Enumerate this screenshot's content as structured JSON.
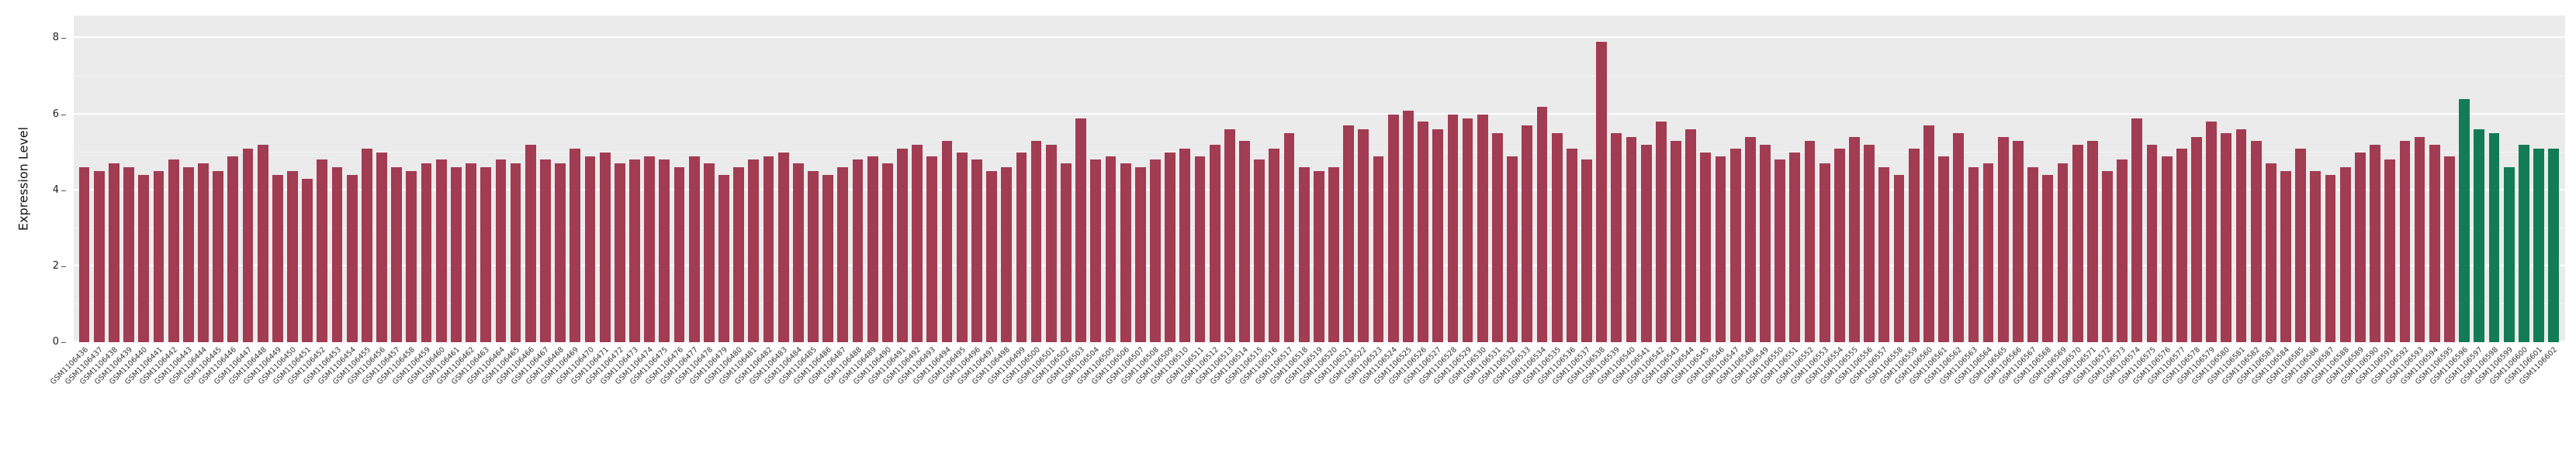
{
  "chart_data": {
    "type": "bar",
    "title": "",
    "xlabel": "",
    "ylabel": "Expression Level",
    "ylim": [
      0,
      8.6
    ],
    "yticks": [
      0,
      2,
      4,
      6,
      8
    ],
    "yticks_minor": [
      1,
      3,
      5,
      7
    ],
    "grid": true,
    "legend_position": "none",
    "plot_background": "#EBEBEB",
    "figure_background": "#FFFFFF",
    "gridline_color": "#FFFFFF",
    "colors": {
      "default": "#A23C52",
      "highlight": "#127C56"
    },
    "highlight_from": 160,
    "categories": [
      "GSM1106436",
      "GSM1106437",
      "GSM1106438",
      "GSM1106439",
      "GSM1106440",
      "GSM1106441",
      "GSM1106442",
      "GSM1106443",
      "GSM1106444",
      "GSM1106445",
      "GSM1106446",
      "GSM1106447",
      "GSM1106448",
      "GSM1106449",
      "GSM1106450",
      "GSM1106451",
      "GSM1106452",
      "GSM1106453",
      "GSM1106454",
      "GSM1106455",
      "GSM1106456",
      "GSM1106457",
      "GSM1106458",
      "GSM1106459",
      "GSM1106460",
      "GSM1106461",
      "GSM1106462",
      "GSM1106463",
      "GSM1106464",
      "GSM1106465",
      "GSM1106466",
      "GSM1106467",
      "GSM1106468",
      "GSM1106469",
      "GSM1106470",
      "GSM1106471",
      "GSM1106472",
      "GSM1106473",
      "GSM1106474",
      "GSM1106475",
      "GSM1106476",
      "GSM1106477",
      "GSM1106478",
      "GSM1106479",
      "GSM1106480",
      "GSM1106481",
      "GSM1106482",
      "GSM1106483",
      "GSM1106484",
      "GSM1106485",
      "GSM1106486",
      "GSM1106487",
      "GSM1106488",
      "GSM1106489",
      "GSM1106490",
      "GSM1106491",
      "GSM1106492",
      "GSM1106493",
      "GSM1106494",
      "GSM1106495",
      "GSM1106496",
      "GSM1106497",
      "GSM1106498",
      "GSM1106499",
      "GSM1106500",
      "GSM1106501",
      "GSM1106502",
      "GSM1106503",
      "GSM1106504",
      "GSM1106505",
      "GSM1106506",
      "GSM1106507",
      "GSM1106508",
      "GSM1106509",
      "GSM1106510",
      "GSM1106511",
      "GSM1106512",
      "GSM1106513",
      "GSM1106514",
      "GSM1106515",
      "GSM1106516",
      "GSM1106517",
      "GSM1106518",
      "GSM1106519",
      "GSM1106520",
      "GSM1106521",
      "GSM1106522",
      "GSM1106523",
      "GSM1106524",
      "GSM1106525",
      "GSM1106526",
      "GSM1106527",
      "GSM1106528",
      "GSM1106529",
      "GSM1106530",
      "GSM1106531",
      "GSM1106532",
      "GSM1106533",
      "GSM1106534",
      "GSM1106535",
      "GSM1106536",
      "GSM1106537",
      "GSM1106538",
      "GSM1106539",
      "GSM1106540",
      "GSM1106541",
      "GSM1106542",
      "GSM1106543",
      "GSM1106544",
      "GSM1106545",
      "GSM1106546",
      "GSM1106547",
      "GSM1106548",
      "GSM1106549",
      "GSM1106550",
      "GSM1106551",
      "GSM1106552",
      "GSM1106553",
      "GSM1106554",
      "GSM1106555",
      "GSM1106556",
      "GSM1106557",
      "GSM1106558",
      "GSM1106559",
      "GSM1106560",
      "GSM1106561",
      "GSM1106562",
      "GSM1106563",
      "GSM1106564",
      "GSM1106565",
      "GSM1106566",
      "GSM1106567",
      "GSM1106568",
      "GSM1106569",
      "GSM1106570",
      "GSM1106571",
      "GSM1106572",
      "GSM1106573",
      "GSM1106574",
      "GSM1106575",
      "GSM1106576",
      "GSM1106577",
      "GSM1106578",
      "GSM1106579",
      "GSM1106580",
      "GSM1106581",
      "GSM1106582",
      "GSM1106583",
      "GSM1106584",
      "GSM1106585",
      "GSM1106586",
      "GSM1106587",
      "GSM1106588",
      "GSM1106589",
      "GSM1106590",
      "GSM1106591",
      "GSM1106592",
      "GSM1106593",
      "GSM1106594",
      "GSM1106595",
      "GSM1106596",
      "GSM1106597",
      "GSM1106598",
      "GSM1106599",
      "GSM1106600",
      "GSM1106601",
      "GSM1106602"
    ],
    "values": [
      4.6,
      4.5,
      4.7,
      4.6,
      4.4,
      4.5,
      4.8,
      4.6,
      4.7,
      4.5,
      4.9,
      5.1,
      5.2,
      4.4,
      4.5,
      4.3,
      4.8,
      4.6,
      4.4,
      5.1,
      5.0,
      4.6,
      4.5,
      4.7,
      4.8,
      4.6,
      4.7,
      4.6,
      4.8,
      4.7,
      5.2,
      4.8,
      4.7,
      5.1,
      4.9,
      5.0,
      4.7,
      4.8,
      4.9,
      4.8,
      4.6,
      4.9,
      4.7,
      4.4,
      4.6,
      4.8,
      4.9,
      5.0,
      4.7,
      4.5,
      4.4,
      4.6,
      4.8,
      4.9,
      4.7,
      5.1,
      5.2,
      4.9,
      5.3,
      5.0,
      4.8,
      4.5,
      4.6,
      5.0,
      5.3,
      5.2,
      4.7,
      5.9,
      4.8,
      4.9,
      4.7,
      4.6,
      4.8,
      5.0,
      5.1,
      4.9,
      5.2,
      5.6,
      5.3,
      4.8,
      5.1,
      5.5,
      4.6,
      4.5,
      4.6,
      5.7,
      5.6,
      4.9,
      6.0,
      6.1,
      5.8,
      5.6,
      6.0,
      5.9,
      6.0,
      5.5,
      4.9,
      5.7,
      6.2,
      5.5,
      5.1,
      4.8,
      7.9,
      5.5,
      5.4,
      5.2,
      5.8,
      5.3,
      5.6,
      5.0,
      4.9,
      5.1,
      5.4,
      5.2,
      4.8,
      5.0,
      5.3,
      4.7,
      5.1,
      5.4,
      5.2,
      4.6,
      4.4,
      5.1,
      5.7,
      4.9,
      5.5,
      4.6,
      4.7,
      5.4,
      5.3,
      4.6,
      4.4,
      4.7,
      5.2,
      5.3,
      4.5,
      4.8,
      5.9,
      5.2,
      4.9,
      5.1,
      5.4,
      5.8,
      5.5,
      5.6,
      5.3,
      4.7,
      4.5,
      5.1,
      4.5,
      4.4,
      4.6,
      5.0,
      5.2,
      4.8,
      5.3,
      5.4,
      5.2,
      4.9,
      6.4,
      5.6,
      5.5,
      4.6,
      5.2,
      5.1,
      5.1
    ]
  }
}
